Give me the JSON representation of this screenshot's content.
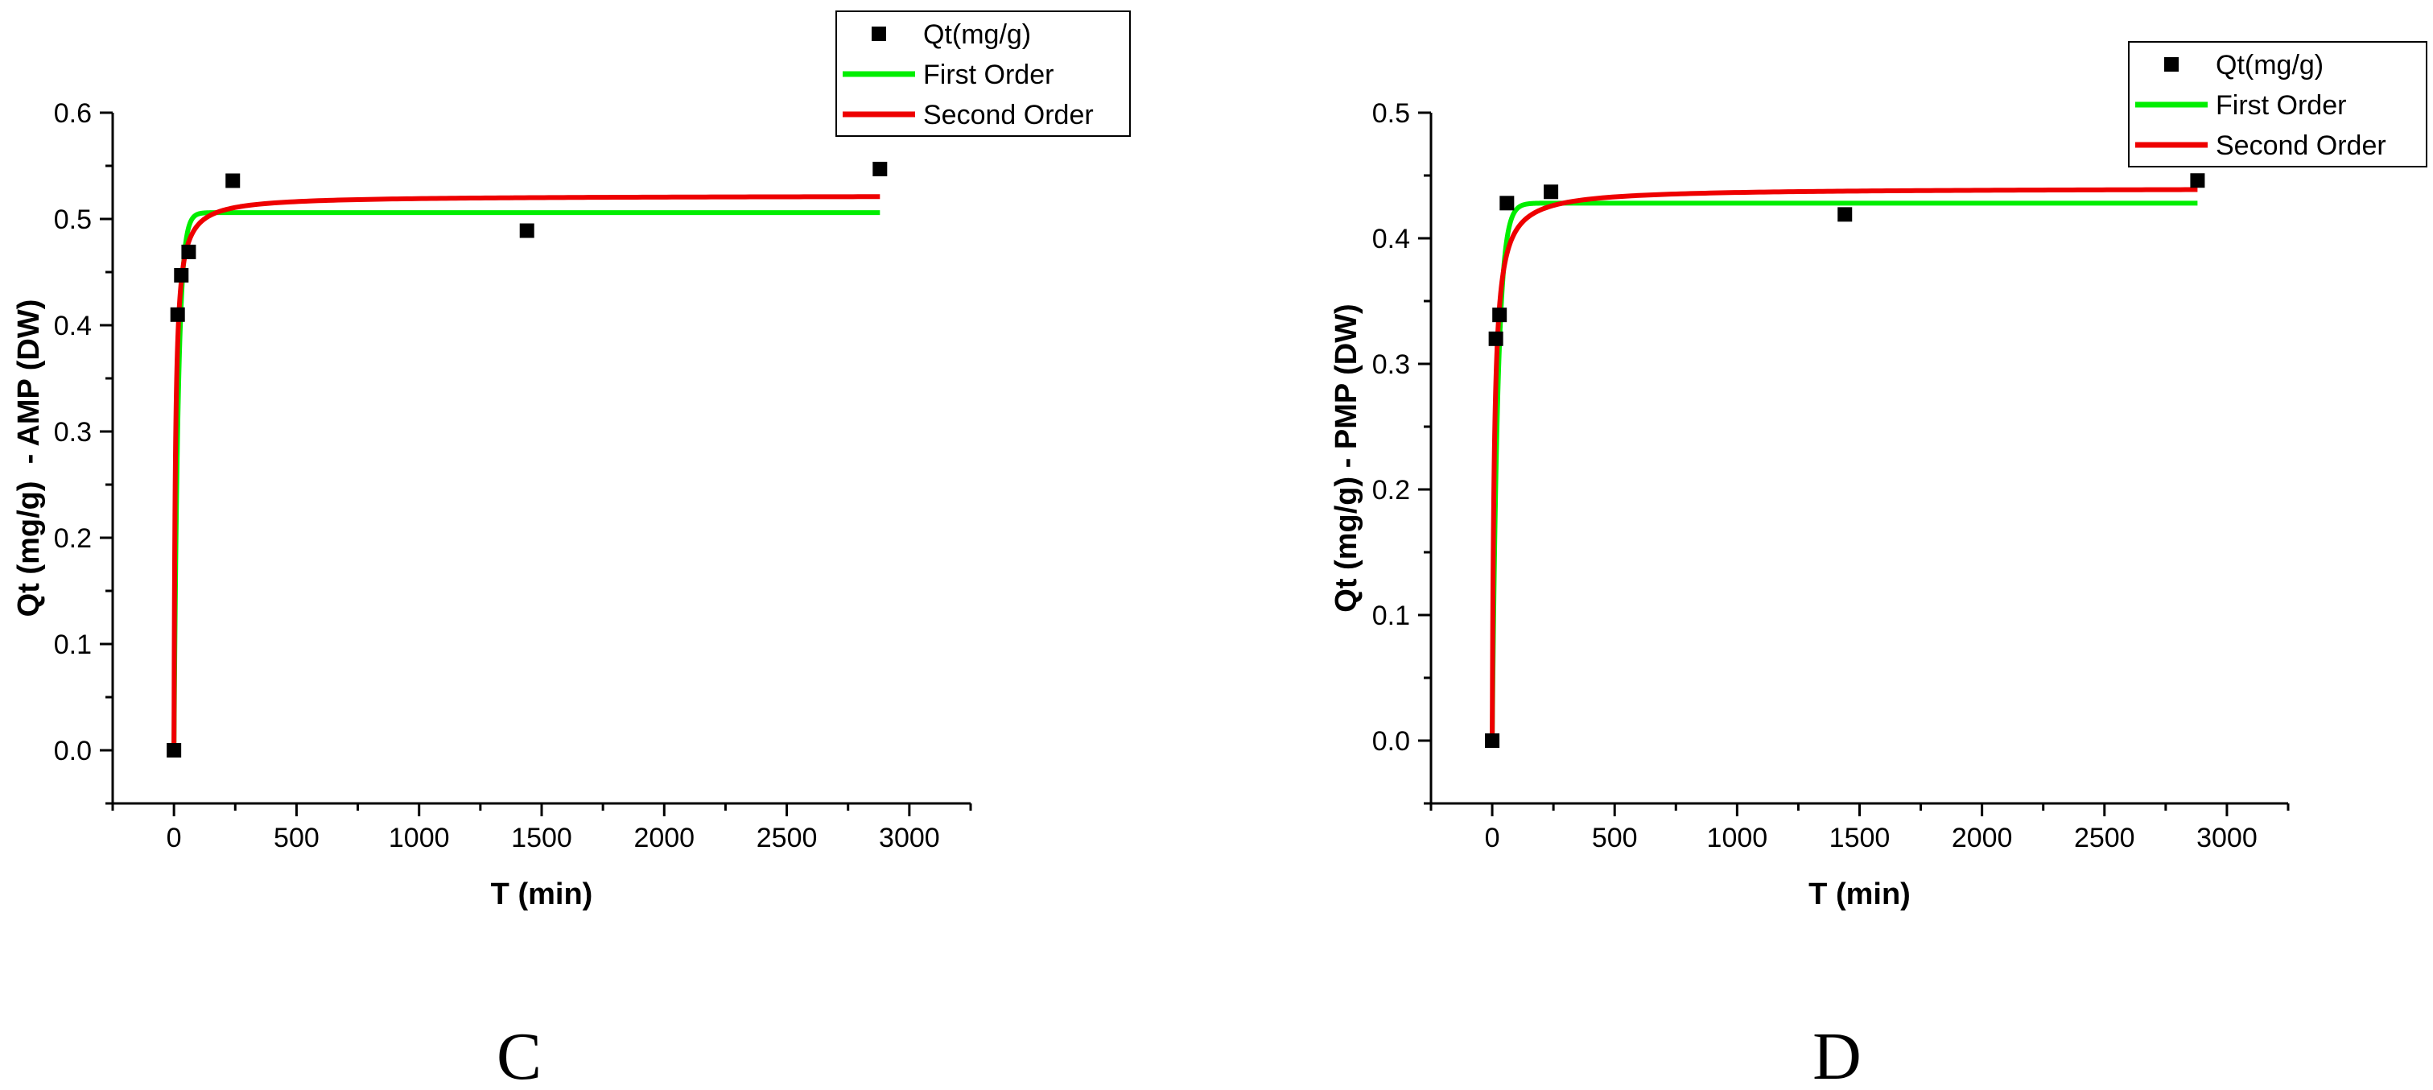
{
  "chart_data": [
    {
      "type": "scatter",
      "xlabel": "T (min)",
      "ylabel": "Qt (mg/g)  - AMP (DW)",
      "xlim": [
        -250,
        3250
      ],
      "ylim": [
        -0.05,
        0.6
      ],
      "xticks": [
        0,
        500,
        1000,
        1500,
        2000,
        2500,
        3000
      ],
      "yticks": [
        0.0,
        0.1,
        0.2,
        0.3,
        0.4,
        0.5,
        0.6
      ],
      "ytick_labels": [
        "0.0",
        "0.1",
        "0.2",
        "0.3",
        "0.4",
        "0.5",
        "0.6"
      ],
      "legend_position": "top-right",
      "panel_label": "C",
      "series": [
        {
          "name": "Qt(mg/g)",
          "kind": "points",
          "color": "#000000",
          "x": [
            0,
            15,
            30,
            60,
            240,
            1440,
            2880
          ],
          "y": [
            0.0,
            0.41,
            0.447,
            0.469,
            0.536,
            0.489,
            0.547
          ]
        },
        {
          "name": "First Order",
          "kind": "line",
          "color": "#00ee00",
          "model": "first-order",
          "qe": 0.506,
          "k": 0.06,
          "x_range": [
            0,
            2880
          ]
        },
        {
          "name": "Second Order",
          "kind": "line",
          "color": "#ee0000",
          "model": "second-order",
          "qe": 0.522,
          "k": 0.35,
          "x_range": [
            0,
            2880
          ]
        }
      ]
    },
    {
      "type": "scatter",
      "xlabel": "T (min)",
      "ylabel": "Qt (mg/g) - PMP (DW)",
      "xlim": [
        -250,
        3250
      ],
      "ylim": [
        -0.05,
        0.5
      ],
      "xticks": [
        0,
        500,
        1000,
        1500,
        2000,
        2500,
        3000
      ],
      "yticks": [
        0.0,
        0.1,
        0.2,
        0.3,
        0.4,
        0.5
      ],
      "ytick_labels": [
        "0.0",
        "0.1",
        "0.2",
        "0.3",
        "0.4",
        "0.5"
      ],
      "legend_position": "top-right",
      "panel_label": "D",
      "series": [
        {
          "name": "Qt(mg/g)",
          "kind": "points",
          "color": "#000000",
          "x": [
            0,
            15,
            30,
            60,
            240,
            1440,
            2880
          ],
          "y": [
            0.0,
            0.32,
            0.339,
            0.428,
            0.437,
            0.419,
            0.446
          ]
        },
        {
          "name": "First Order",
          "kind": "line",
          "color": "#00ee00",
          "model": "first-order",
          "qe": 0.428,
          "k": 0.045,
          "x_range": [
            0,
            2880
          ]
        },
        {
          "name": "Second Order",
          "kind": "line",
          "color": "#ee0000",
          "model": "second-order",
          "qe": 0.44,
          "k": 0.28,
          "x_range": [
            0,
            2880
          ]
        }
      ]
    }
  ]
}
